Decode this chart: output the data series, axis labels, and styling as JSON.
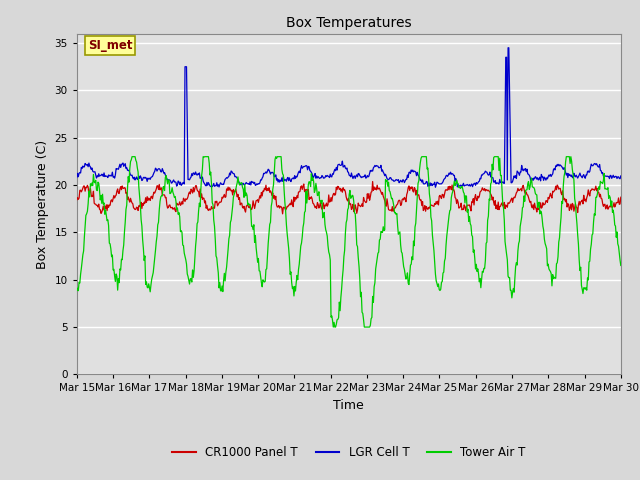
{
  "title": "Box Temperatures",
  "xlabel": "Time",
  "ylabel": "Box Temperature (C)",
  "ylim": [
    0,
    36
  ],
  "yticks": [
    0,
    5,
    10,
    15,
    20,
    25,
    30,
    35
  ],
  "x_labels": [
    "Mar 15",
    "Mar 16",
    "Mar 17",
    "Mar 18",
    "Mar 19",
    "Mar 20",
    "Mar 21",
    "Mar 22",
    "Mar 23",
    "Mar 24",
    "Mar 25",
    "Mar 26",
    "Mar 27",
    "Mar 28",
    "Mar 29",
    "Mar 30"
  ],
  "background_color": "#d8d8d8",
  "plot_bg_color": "#e0e0e0",
  "grid_color": "#ffffff",
  "line_colors": {
    "red": "#cc0000",
    "blue": "#0000cc",
    "green": "#00cc00"
  },
  "legend_labels": [
    "CR1000 Panel T",
    "LGR Cell T",
    "Tower Air T"
  ],
  "annotation_text": "SI_met",
  "annotation_color": "#800000",
  "annotation_bg": "#ffff99",
  "annotation_border": "#999900"
}
